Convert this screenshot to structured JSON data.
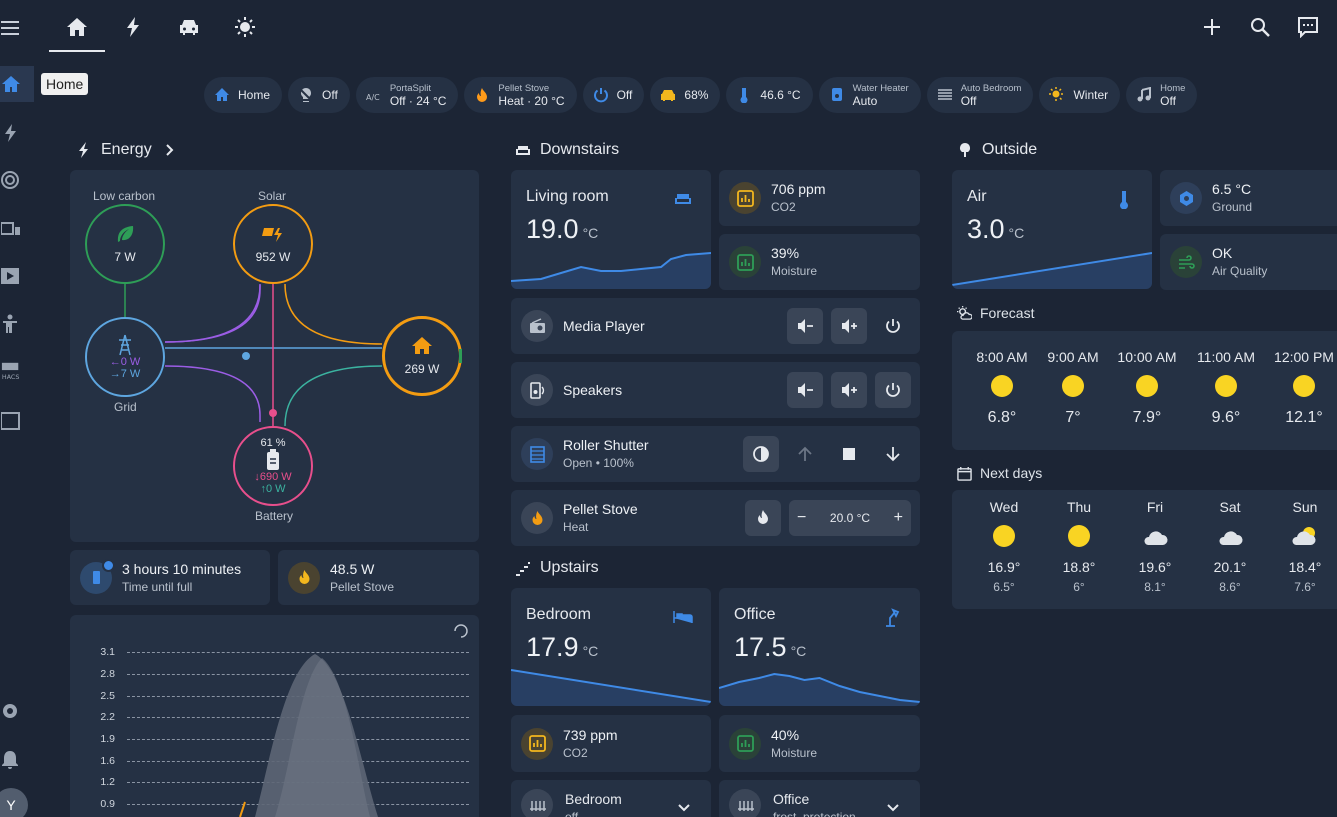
{
  "tooltip": "Home",
  "avatar_initial": "Y",
  "chips": [
    {
      "icon": "home-icon",
      "label": "Home",
      "color": "#3f8ae6"
    },
    {
      "icon": "bulb-off-icon",
      "label": "Off",
      "color": "#b9c1cc"
    },
    {
      "icon": "ac-icon",
      "sub": "PortaSplit",
      "label": "Off · 24 °C",
      "color": "#b9c1cc"
    },
    {
      "icon": "flame-icon",
      "sub": "Pellet Stove",
      "label": "Heat · 20 °C",
      "color": "#ff9b1a"
    },
    {
      "icon": "power-icon",
      "label": "Off",
      "color": "#3f8ae6"
    },
    {
      "icon": "car-icon",
      "label": "68%",
      "color": "#f3b71e"
    },
    {
      "icon": "thermometer-icon",
      "label": "46.6 °C",
      "color": "#3f8ae6"
    },
    {
      "icon": "water-heater-icon",
      "sub": "Water Heater",
      "label": "Auto",
      "color": "#3f8ae6"
    },
    {
      "icon": "radiator-icon",
      "sub": "Auto Bedroom",
      "label": "Off",
      "color": "#b9c1cc"
    },
    {
      "icon": "sun-snow-icon",
      "label": "Winter",
      "color": "#f3b71e"
    },
    {
      "icon": "music-icon",
      "sub": "Home",
      "label": "Off",
      "color": "#b9c1cc"
    }
  ],
  "energy": {
    "title": "Energy",
    "low_carbon": {
      "label": "Low carbon",
      "value": "7 W"
    },
    "solar": {
      "label": "Solar",
      "value": "952 W"
    },
    "grid": {
      "label": "Grid",
      "in": "←0 W",
      "out": "→7 W"
    },
    "home": {
      "value": "269 W"
    },
    "battery": {
      "label": "Battery",
      "pct": "61 %",
      "in": "↓690 W",
      "out": "↑0 W"
    },
    "tiles": [
      {
        "primary": "3 hours 10 minutes",
        "secondary": "Time until full"
      },
      {
        "primary": "48.5 W",
        "secondary": "Pellet Stove"
      }
    ]
  },
  "chart": {
    "ticks": [
      "3.1",
      "2.8",
      "2.5",
      "2.2",
      "1.9",
      "1.6",
      "1.2",
      "0.9"
    ]
  },
  "downstairs": {
    "title": "Downstairs",
    "living_room": {
      "name": "Living room",
      "temp": "19.0",
      "unit": "°C"
    },
    "sensors": [
      {
        "primary": "706 ppm",
        "secondary": "CO2"
      },
      {
        "primary": "39%",
        "secondary": "Moisture"
      }
    ],
    "media_player": {
      "name": "Media Player"
    },
    "speakers": {
      "name": "Speakers"
    },
    "roller_shutter": {
      "name": "Roller Shutter",
      "state": "Open • 100%"
    },
    "pellet_stove": {
      "name": "Pellet Stove",
      "state": "Heat",
      "target": "20.0 °C"
    }
  },
  "upstairs": {
    "title": "Upstairs",
    "bedroom": {
      "name": "Bedroom",
      "temp": "17.9",
      "unit": "°C"
    },
    "office": {
      "name": "Office",
      "temp": "17.5",
      "unit": "°C"
    },
    "sensors": [
      {
        "primary": "739 ppm",
        "secondary": "CO2"
      },
      {
        "primary": "40%",
        "secondary": "Moisture"
      }
    ],
    "climate": [
      {
        "name": "Bedroom",
        "state": "off"
      },
      {
        "name": "Office",
        "state": "frost_protection"
      }
    ]
  },
  "outside": {
    "title": "Outside",
    "air": {
      "name": "Air",
      "temp": "3.0",
      "unit": "°C"
    },
    "ground": {
      "primary": "6.5 °C",
      "secondary": "Ground"
    },
    "air_quality": {
      "primary": "OK",
      "secondary": "Air Quality"
    },
    "forecast_title": "Forecast",
    "hourly": [
      {
        "time": "8:00 AM",
        "temp": "6.8°"
      },
      {
        "time": "9:00 AM",
        "temp": "7°"
      },
      {
        "time": "10:00 AM",
        "temp": "7.9°"
      },
      {
        "time": "11:00 AM",
        "temp": "9.6°"
      },
      {
        "time": "12:00 PM",
        "temp": "12.1°"
      }
    ],
    "next_days_title": "Next days",
    "daily": [
      {
        "day": "Wed",
        "high": "16.9°",
        "low": "6.5°",
        "icon": "sunny"
      },
      {
        "day": "Thu",
        "high": "18.8°",
        "low": "6°",
        "icon": "sunny"
      },
      {
        "day": "Fri",
        "high": "19.6°",
        "low": "8.1°",
        "icon": "cloudy"
      },
      {
        "day": "Sat",
        "high": "20.1°",
        "low": "8.6°",
        "icon": "cloudy"
      },
      {
        "day": "Sun",
        "high": "18.4°",
        "low": "7.6°",
        "icon": "partly-cloudy"
      }
    ]
  }
}
